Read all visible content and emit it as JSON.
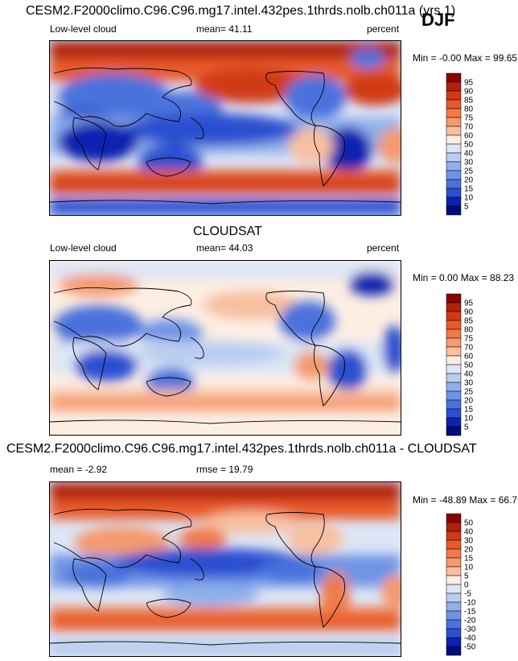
{
  "season": "DJF",
  "panels": [
    {
      "title": "CESM2.F2000climo.C96.C96.mg17.intel.432pes.1thrds.nolb.ch011a (yrs 1)",
      "left_label": "Low-level cloud",
      "stat_label": "mean=  41.11",
      "units": "percent",
      "range_text": "Min =  -0.00 Max =  99.65"
    },
    {
      "title": "CLOUDSAT",
      "left_label": "Low-level cloud",
      "stat_label": "mean=  44.03",
      "units": "percent",
      "range_text": "Min =   0.00 Max =  88.23"
    },
    {
      "title": "CESM2.F2000climo.C96.C96.mg17.intel.432pes.1thrds.nolb.ch011a - CLOUDSAT",
      "left_label": "mean =  -2.92",
      "stat_label": "rmse =  19.79",
      "units": "",
      "range_text": "Min = -48.89 Max =  66.75"
    }
  ],
  "chart_data": [
    {
      "type": "heatmap",
      "title": "CESM2.F2000climo.C96.C96.mg17.intel.432pes.1thrds.nolb.ch011a (yrs 1)",
      "variable": "Low-level cloud",
      "units": "percent",
      "mean": 41.11,
      "min": -0.0,
      "max": 99.65,
      "colorbar_levels": [
        "95",
        "90",
        "85",
        "80",
        "75",
        "70",
        "60",
        "50",
        "40",
        "30",
        "25",
        "20",
        "15",
        "10",
        "5"
      ],
      "colorbar_colors": [
        "#8b0000",
        "#b0200b",
        "#d03a16",
        "#e85a2a",
        "#f07a48",
        "#f49a6e",
        "#f8c0a0",
        "#fdeee4",
        "#dde6f6",
        "#b8cdf0",
        "#90b0ea",
        "#6f94e6",
        "#4a72dc",
        "#2b4fd0",
        "#0c22b0",
        "#000c7a"
      ]
    },
    {
      "type": "heatmap",
      "title": "CLOUDSAT",
      "variable": "Low-level cloud",
      "units": "percent",
      "mean": 44.03,
      "min": 0.0,
      "max": 88.23,
      "colorbar_levels": [
        "95",
        "90",
        "85",
        "80",
        "75",
        "70",
        "60",
        "50",
        "40",
        "30",
        "25",
        "20",
        "15",
        "10",
        "5"
      ],
      "colorbar_colors": [
        "#8b0000",
        "#b0200b",
        "#d03a16",
        "#e85a2a",
        "#f07a48",
        "#f49a6e",
        "#f8c0a0",
        "#fdeee4",
        "#dde6f6",
        "#b8cdf0",
        "#90b0ea",
        "#6f94e6",
        "#4a72dc",
        "#2b4fd0",
        "#0c22b0",
        "#000c7a"
      ]
    },
    {
      "type": "heatmap",
      "title": "CESM2.F2000climo.C96.C96.mg17.intel.432pes.1thrds.nolb.ch011a - CLOUDSAT",
      "mean": -2.92,
      "rmse": 19.79,
      "min": -48.89,
      "max": 66.75,
      "colorbar_levels": [
        "50",
        "40",
        "30",
        "20",
        "15",
        "10",
        "5",
        "0",
        "-5",
        "-10",
        "-15",
        "-20",
        "-30",
        "-40",
        "-50"
      ],
      "colorbar_colors": [
        "#8b0000",
        "#b0200b",
        "#d03a16",
        "#e85a2a",
        "#f07a48",
        "#f49a6e",
        "#f8c0a0",
        "#fdeee4",
        "#dde6f6",
        "#b8cdf0",
        "#90b0ea",
        "#6f94e6",
        "#4a72dc",
        "#2b4fd0",
        "#0c22b0",
        "#000c7a"
      ]
    }
  ]
}
